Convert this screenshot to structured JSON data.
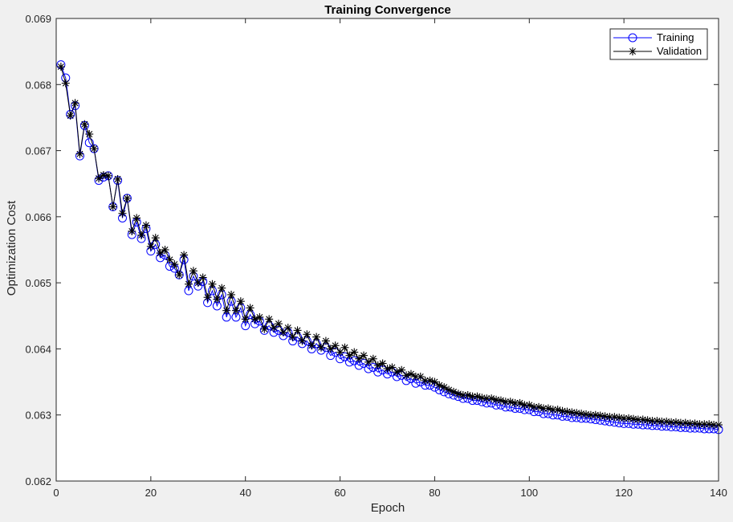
{
  "chart_data": {
    "type": "line",
    "title": "Training Convergence",
    "xlabel": "Epoch",
    "ylabel": "Optimization Cost",
    "xlim": [
      0,
      140
    ],
    "ylim": [
      0.062,
      0.069
    ],
    "xticks": [
      0,
      20,
      40,
      60,
      80,
      100,
      120,
      140
    ],
    "xtick_labels": [
      "0",
      "20",
      "40",
      "60",
      "80",
      "100",
      "120",
      "140"
    ],
    "yticks": [
      0.062,
      0.063,
      0.064,
      0.065,
      0.066,
      0.067,
      0.068,
      0.069
    ],
    "ytick_labels": [
      "0.062",
      "0.063",
      "0.064",
      "0.065",
      "0.066",
      "0.067",
      "0.068",
      "0.069"
    ],
    "grid": false,
    "legend_position": "top-right",
    "colors": {
      "training": "#0000ff",
      "validation": "#000000",
      "axes_bg": "#ffffff",
      "figure_bg": "#f0f0f0"
    },
    "x": [
      1,
      2,
      3,
      4,
      5,
      6,
      7,
      8,
      9,
      10,
      11,
      12,
      13,
      14,
      15,
      16,
      17,
      18,
      19,
      20,
      21,
      22,
      23,
      24,
      25,
      26,
      27,
      28,
      29,
      30,
      31,
      32,
      33,
      34,
      35,
      36,
      37,
      38,
      39,
      40,
      41,
      42,
      43,
      44,
      45,
      46,
      47,
      48,
      49,
      50,
      51,
      52,
      53,
      54,
      55,
      56,
      57,
      58,
      59,
      60,
      61,
      62,
      63,
      64,
      65,
      66,
      67,
      68,
      69,
      70,
      71,
      72,
      73,
      74,
      75,
      76,
      77,
      78,
      79,
      80,
      81,
      82,
      83,
      84,
      85,
      86,
      87,
      88,
      89,
      90,
      91,
      92,
      93,
      94,
      95,
      96,
      97,
      98,
      99,
      100,
      101,
      102,
      103,
      104,
      105,
      106,
      107,
      108,
      109,
      110,
      111,
      112,
      113,
      114,
      115,
      116,
      117,
      118,
      119,
      120,
      121,
      122,
      123,
      124,
      125,
      126,
      127,
      128,
      129,
      130,
      131,
      132,
      133,
      134,
      135,
      136,
      137,
      138,
      139,
      140
    ],
    "series": [
      {
        "name": "Training",
        "marker": "circle",
        "values": [
          0.0683,
          0.0681,
          0.06755,
          0.06768,
          0.06692,
          0.06738,
          0.06712,
          0.06703,
          0.06655,
          0.0666,
          0.06662,
          0.06615,
          0.06655,
          0.06598,
          0.06628,
          0.06573,
          0.06592,
          0.06567,
          0.06582,
          0.06548,
          0.06558,
          0.06538,
          0.06542,
          0.06525,
          0.06522,
          0.06512,
          0.06535,
          0.06488,
          0.0651,
          0.06495,
          0.06502,
          0.0647,
          0.06488,
          0.06465,
          0.06482,
          0.06448,
          0.06472,
          0.06448,
          0.06462,
          0.06435,
          0.06452,
          0.06438,
          0.06442,
          0.06428,
          0.06435,
          0.06425,
          0.06428,
          0.0642,
          0.06425,
          0.06412,
          0.06418,
          0.06408,
          0.06412,
          0.064,
          0.06408,
          0.06398,
          0.06402,
          0.0639,
          0.06395,
          0.06385,
          0.06388,
          0.0638,
          0.06382,
          0.06375,
          0.06378,
          0.0637,
          0.06372,
          0.06365,
          0.06368,
          0.06362,
          0.06365,
          0.06358,
          0.0636,
          0.06352,
          0.06355,
          0.06348,
          0.0635,
          0.06345,
          0.06345,
          0.06342,
          0.06338,
          0.06335,
          0.06332,
          0.0633,
          0.06328,
          0.06325,
          0.06325,
          0.06322,
          0.06322,
          0.0632,
          0.06318,
          0.06318,
          0.06315,
          0.06315,
          0.06312,
          0.06312,
          0.0631,
          0.0631,
          0.06308,
          0.06308,
          0.06305,
          0.06305,
          0.06302,
          0.06302,
          0.063,
          0.063,
          0.06298,
          0.06298,
          0.06296,
          0.06296,
          0.06295,
          0.06295,
          0.06294,
          0.06293,
          0.06292,
          0.06291,
          0.0629,
          0.06289,
          0.06288,
          0.06287,
          0.06287,
          0.06286,
          0.06286,
          0.06285,
          0.06285,
          0.06284,
          0.06284,
          0.06283,
          0.06283,
          0.06282,
          0.06282,
          0.06281,
          0.06281,
          0.0628,
          0.0628,
          0.0628,
          0.06279,
          0.06279,
          0.06279,
          0.06278
        ]
      },
      {
        "name": "Validation",
        "marker": "asterisk",
        "values": [
          0.06827,
          0.06802,
          0.06753,
          0.06772,
          0.06695,
          0.0674,
          0.06725,
          0.06703,
          0.06658,
          0.06663,
          0.06662,
          0.06615,
          0.06657,
          0.06605,
          0.06628,
          0.06578,
          0.06598,
          0.06572,
          0.06587,
          0.06555,
          0.06568,
          0.06545,
          0.0655,
          0.06535,
          0.06528,
          0.06512,
          0.06542,
          0.06498,
          0.06518,
          0.065,
          0.06508,
          0.06478,
          0.06498,
          0.06475,
          0.06492,
          0.06458,
          0.06482,
          0.06458,
          0.06472,
          0.06445,
          0.06462,
          0.06445,
          0.06448,
          0.0643,
          0.06445,
          0.06432,
          0.06438,
          0.06425,
          0.06432,
          0.06418,
          0.06428,
          0.06412,
          0.06422,
          0.06405,
          0.06418,
          0.06402,
          0.06412,
          0.064,
          0.06405,
          0.06395,
          0.06402,
          0.0639,
          0.06395,
          0.06385,
          0.0639,
          0.0638,
          0.06385,
          0.06375,
          0.06378,
          0.0637,
          0.06372,
          0.06365,
          0.06368,
          0.0636,
          0.06362,
          0.06358,
          0.06358,
          0.06352,
          0.06352,
          0.0635,
          0.06345,
          0.06342,
          0.06338,
          0.06335,
          0.06332,
          0.0633,
          0.0633,
          0.06328,
          0.06328,
          0.06326,
          0.06325,
          0.06325,
          0.06323,
          0.06322,
          0.0632,
          0.0632,
          0.06318,
          0.06318,
          0.06315,
          0.06315,
          0.06312,
          0.06312,
          0.0631,
          0.0631,
          0.06308,
          0.06308,
          0.06306,
          0.06305,
          0.06304,
          0.06303,
          0.06302,
          0.06301,
          0.063,
          0.063,
          0.06299,
          0.06298,
          0.06297,
          0.06297,
          0.06296,
          0.06295,
          0.06295,
          0.06294,
          0.06293,
          0.06293,
          0.06292,
          0.06291,
          0.06291,
          0.0629,
          0.0629,
          0.06289,
          0.06289,
          0.06288,
          0.06288,
          0.06287,
          0.06287,
          0.06286,
          0.06286,
          0.06286,
          0.06285,
          0.06285
        ]
      }
    ]
  }
}
